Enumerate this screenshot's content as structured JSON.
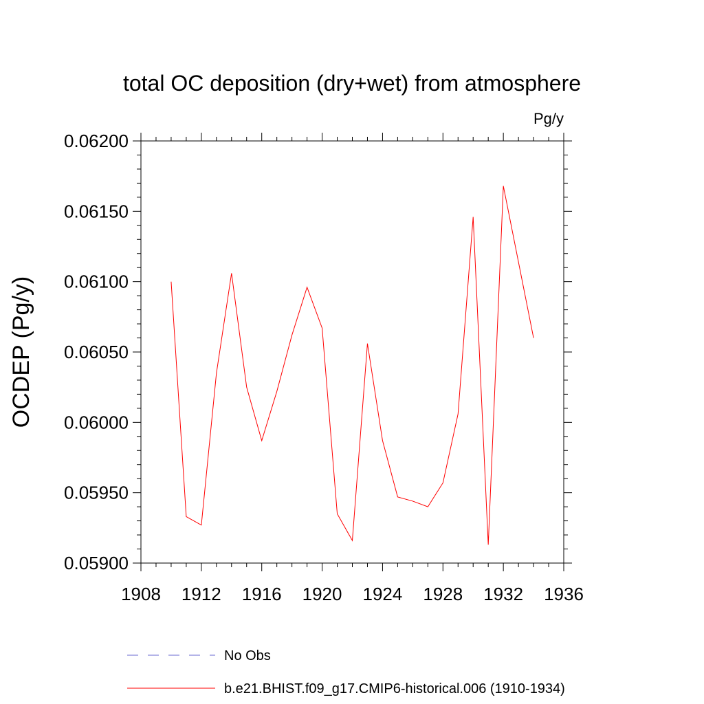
{
  "chart_data": {
    "type": "line",
    "title": "total OC deposition (dry+wet) from atmosphere",
    "units_label": "Pg/y",
    "xlabel": "",
    "ylabel": "OCDEP  (Pg/y)",
    "xlim": [
      1908,
      1936
    ],
    "ylim": [
      0.059,
      0.062
    ],
    "x_ticks": [
      1908,
      1912,
      1916,
      1920,
      1924,
      1928,
      1932,
      1936
    ],
    "y_ticks": [
      0.059,
      0.0595,
      0.06,
      0.0605,
      0.061,
      0.0615,
      0.062
    ],
    "y_tick_labels": [
      "0.05900",
      "0.05950",
      "0.06000",
      "0.06050",
      "0.06100",
      "0.06150",
      "0.06200"
    ],
    "grid": false,
    "legend_position": "bottom",
    "series": [
      {
        "name": "b.e21.BHIST.f09_g17.CMIP6-historical.006 (1910-1934)",
        "color": "#ff0000",
        "style": "solid",
        "x": [
          1910,
          1911,
          1912,
          1913,
          1914,
          1915,
          1916,
          1917,
          1918,
          1919,
          1920,
          1921,
          1922,
          1923,
          1924,
          1925,
          1926,
          1927,
          1928,
          1929,
          1930,
          1931,
          1932,
          1933,
          1934
        ],
        "values": [
          0.061,
          0.05933,
          0.05927,
          0.06035,
          0.06106,
          0.06025,
          0.05987,
          0.06022,
          0.06062,
          0.06096,
          0.06067,
          0.05935,
          0.05916,
          0.06056,
          0.05987,
          0.05947,
          0.05944,
          0.0594,
          0.05957,
          0.06006,
          0.06146,
          0.05913,
          0.06168,
          0.06114,
          0.0606
        ]
      }
    ],
    "legend": [
      {
        "label": "No Obs",
        "color": "#6a6ad0",
        "style": "dashed"
      },
      {
        "label": "b.e21.BHIST.f09_g17.CMIP6-historical.006 (1910-1934)",
        "color": "#ff0000",
        "style": "solid"
      }
    ]
  }
}
